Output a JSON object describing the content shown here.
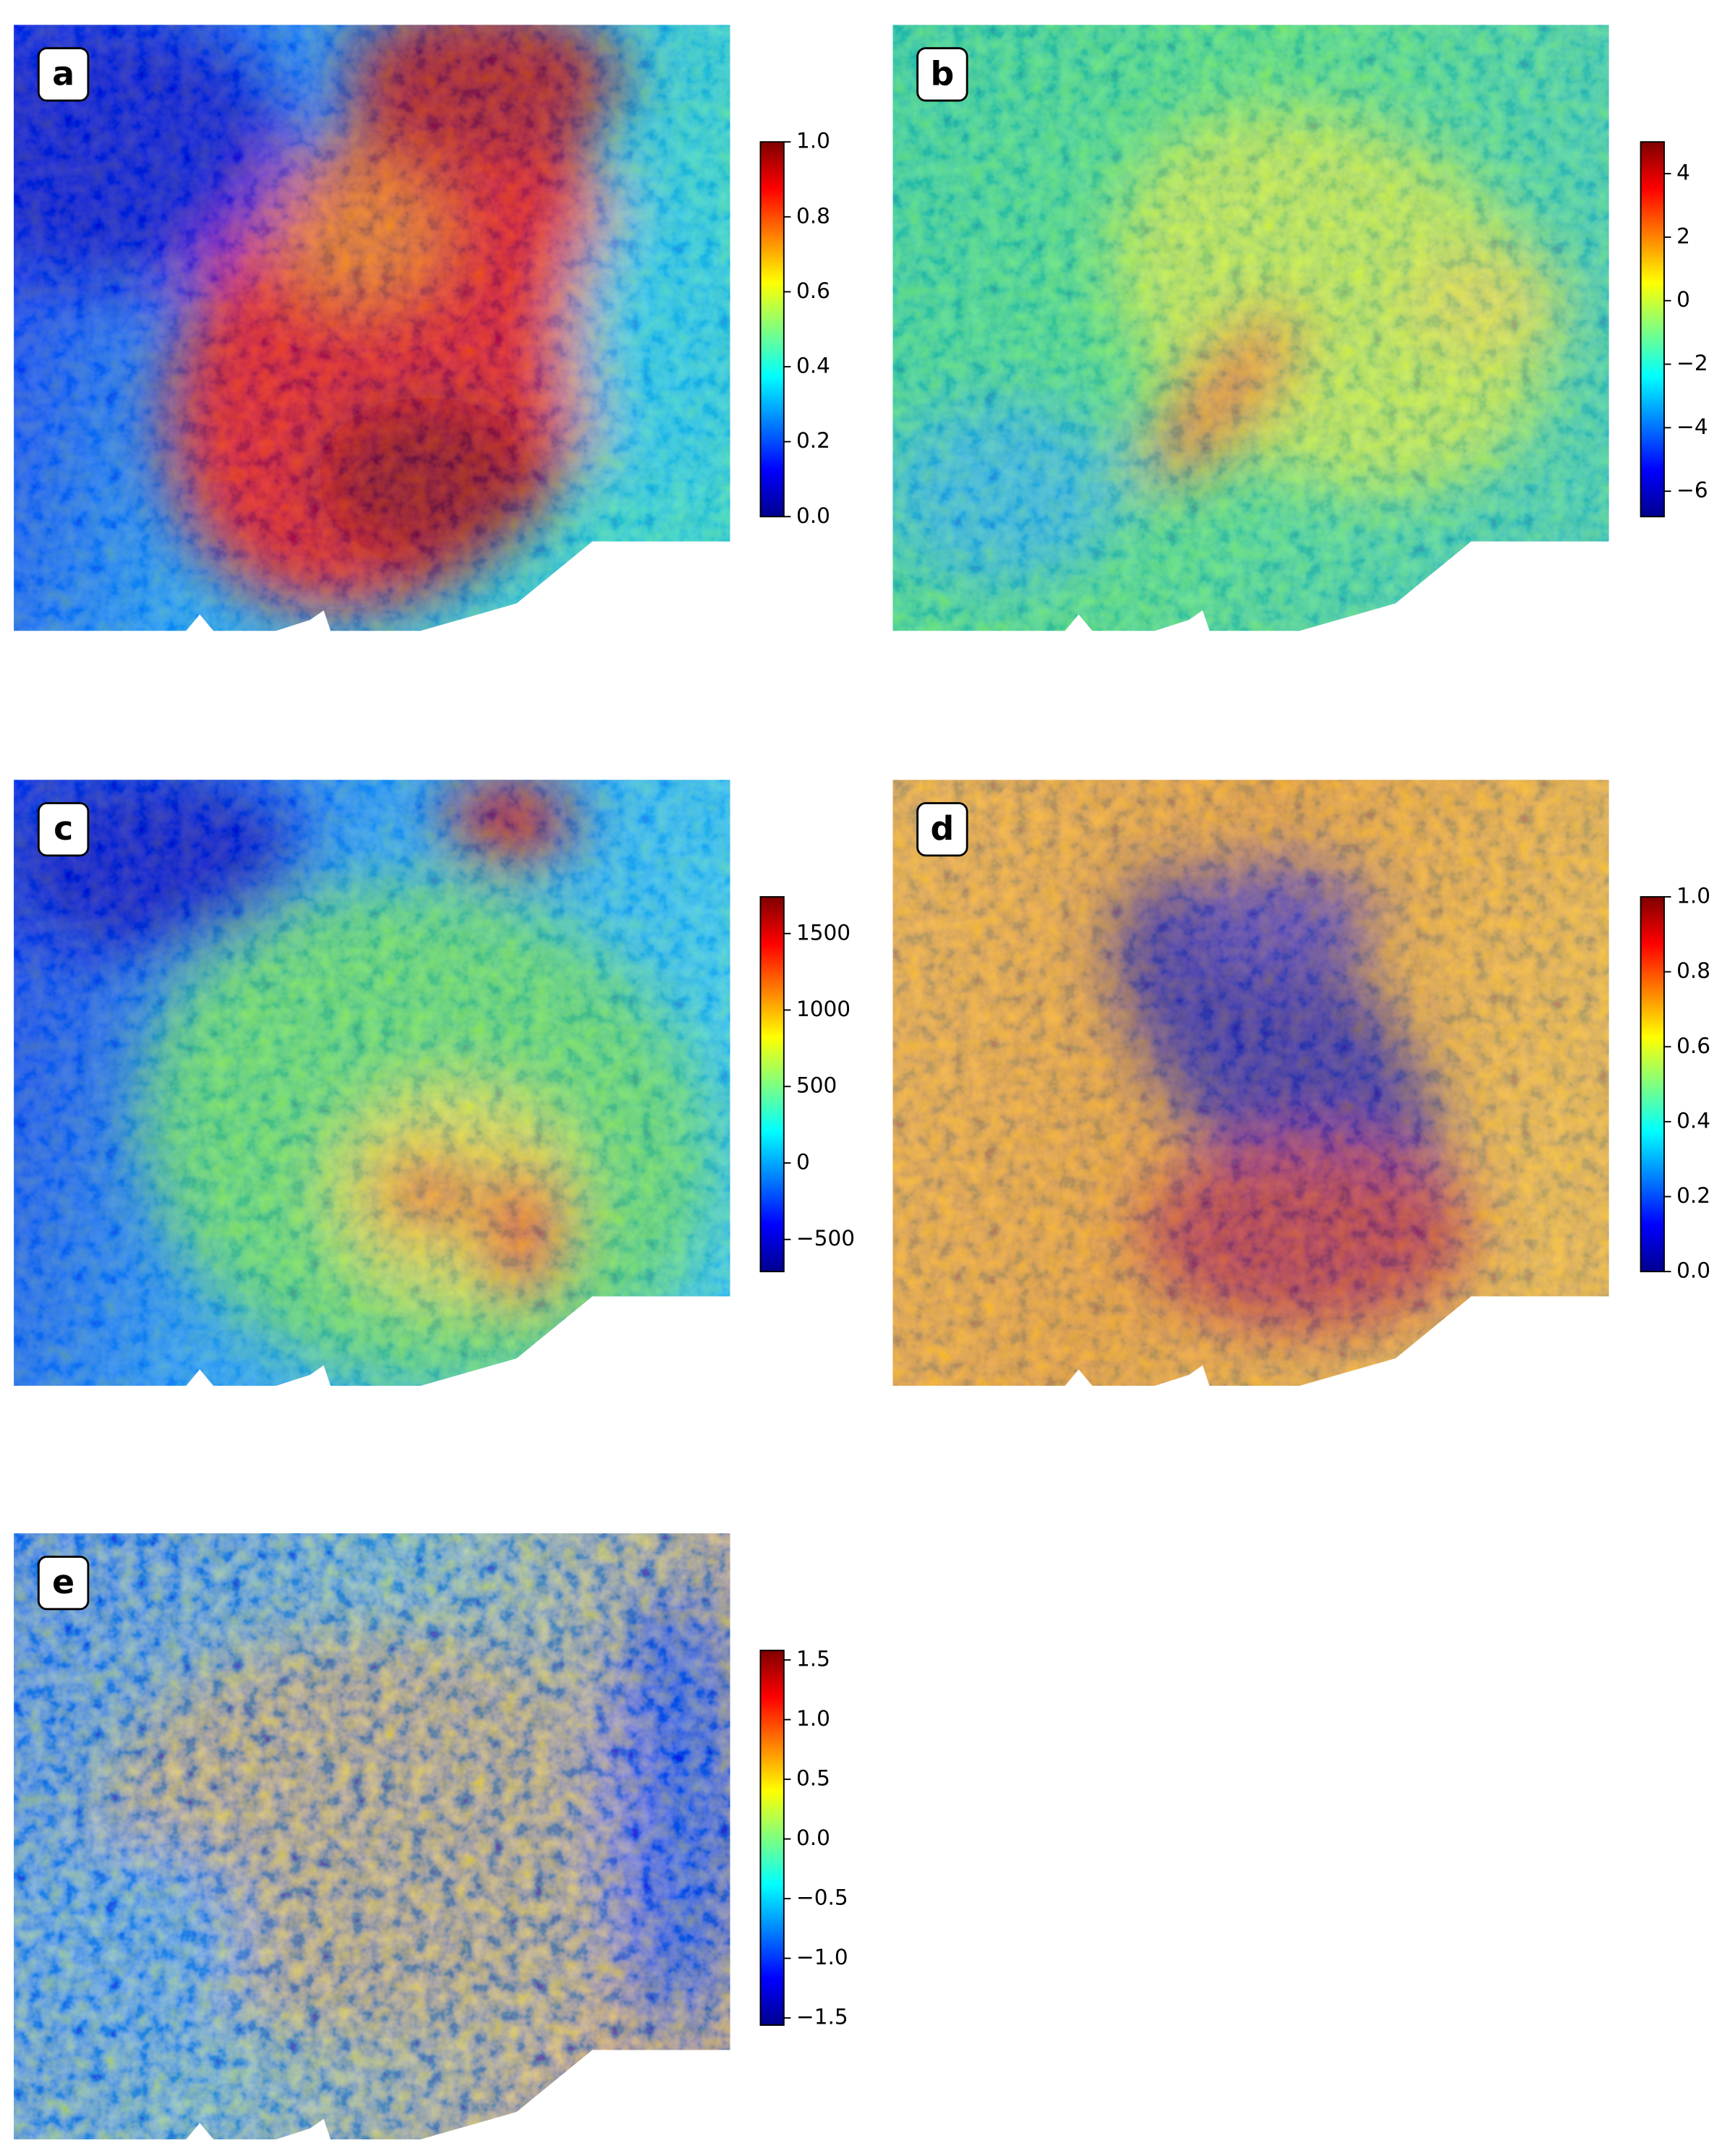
{
  "chart_data": [
    {
      "type": "heatmap",
      "label": "a",
      "colormap": "jet",
      "zlim": [
        0,
        1
      ],
      "zticks": [
        {
          "value": 0,
          "label": "0.0"
        },
        0.2,
        0.4,
        0.6,
        0.8,
        {
          "value": 1,
          "label": "1.0"
        }
      ]
    },
    {
      "type": "heatmap",
      "label": "b",
      "colormap": "jet",
      "zlim": [
        -6.8,
        5
      ],
      "zticks": [
        {
          "value": -6,
          "label": "−6"
        },
        {
          "value": -4,
          "label": "−4"
        },
        {
          "value": -2,
          "label": "−2"
        },
        0,
        2,
        4
      ]
    },
    {
      "type": "heatmap",
      "label": "c",
      "colormap": "jet",
      "zlim": [
        -710,
        1740
      ],
      "zticks": [
        {
          "value": -500,
          "label": "−500"
        },
        0,
        500,
        1000,
        1500
      ]
    },
    {
      "type": "heatmap",
      "label": "d",
      "colormap": "jet",
      "zlim": [
        0,
        1
      ],
      "zticks": [
        {
          "value": 0,
          "label": "0.0"
        },
        0.2,
        0.4,
        0.6,
        0.8,
        {
          "value": 1,
          "label": "1.0"
        }
      ]
    },
    {
      "type": "heatmap",
      "label": "e",
      "colormap": "jet",
      "zlim": [
        -1.56,
        1.58
      ],
      "zticks": [
        {
          "value": -1.5,
          "label": "−1.5"
        },
        {
          "value": -1,
          "label": "−1.0"
        },
        {
          "value": -0.5,
          "label": "−0.5"
        },
        {
          "value": 0,
          "label": "0.0"
        },
        0.5,
        {
          "value": 1,
          "label": "1.0"
        },
        1.5
      ]
    }
  ]
}
